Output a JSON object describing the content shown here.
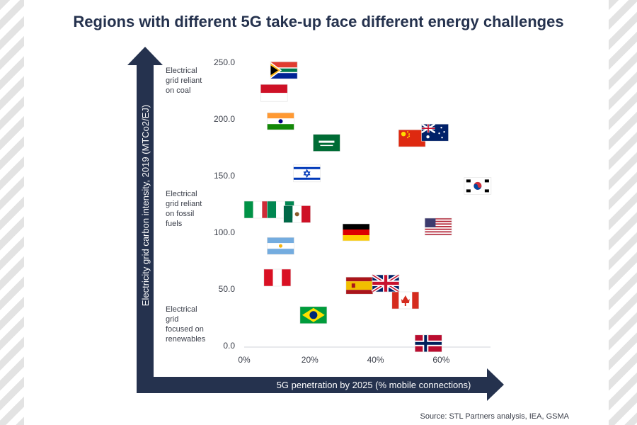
{
  "title": "Regions with different 5G take-up face different energy challenges",
  "source": "Source: STL Partners analysis, IEA, GSMA",
  "colors": {
    "axis": "#25324e",
    "text": "#3b3f4a",
    "grid": "#d0d3d8"
  },
  "chart_data": {
    "type": "scatter",
    "xlabel": "5G penetration by 2025 (% mobile connections)",
    "ylabel": "Electricity grid carbon intensity, 2019 (MTCo2/EJ)",
    "xlim": [
      0,
      75
    ],
    "ylim": [
      0,
      250
    ],
    "x_ticks": [
      "0%",
      "20%",
      "40%",
      "60%"
    ],
    "x_tick_values": [
      0,
      20,
      40,
      60
    ],
    "y_ticks": [
      "0.0",
      "50.0",
      "100.0",
      "150.0",
      "200.0",
      "250.0"
    ],
    "y_tick_values": [
      0,
      50,
      100,
      150,
      200,
      250
    ],
    "categories": [
      {
        "lines": [
          "Electrical",
          "grid reliant",
          "on coal"
        ]
      },
      {
        "lines": [
          "Electrical",
          "grid reliant",
          "on fossil",
          "fuels"
        ]
      },
      {
        "lines": [
          "Electrical",
          "grid",
          "focused on",
          "renewables"
        ]
      }
    ],
    "points": [
      {
        "country": "South Africa",
        "flag": "south-africa",
        "x": 8,
        "y": 243
      },
      {
        "country": "Indonesia",
        "flag": "indonesia",
        "x": 5,
        "y": 223
      },
      {
        "country": "India",
        "flag": "india",
        "x": 7,
        "y": 198
      },
      {
        "country": "Saudi Arabia",
        "flag": "saudi-arabia",
        "x": 21,
        "y": 179
      },
      {
        "country": "China",
        "flag": "china",
        "x": 47,
        "y": 183
      },
      {
        "country": "Australia",
        "flag": "australia",
        "x": 54,
        "y": 188
      },
      {
        "country": "Israel",
        "flag": "israel",
        "x": 15,
        "y": 152
      },
      {
        "country": "South Korea",
        "flag": "south-korea",
        "x": 67,
        "y": 141
      },
      {
        "country": "Italy",
        "flag": "italy",
        "x": 0,
        "y": 120
      },
      {
        "country": "Nigeria",
        "flag": "nigeria",
        "x": 7,
        "y": 120
      },
      {
        "country": "Mexico",
        "flag": "mexico",
        "x": 12,
        "y": 116
      },
      {
        "country": "Germany",
        "flag": "germany",
        "x": 30,
        "y": 100
      },
      {
        "country": "United States",
        "flag": "usa",
        "x": 55,
        "y": 105
      },
      {
        "country": "Argentina",
        "flag": "argentina",
        "x": 7,
        "y": 88
      },
      {
        "country": "Peru",
        "flag": "peru",
        "x": 6,
        "y": 60
      },
      {
        "country": "Spain",
        "flag": "spain",
        "x": 31,
        "y": 53
      },
      {
        "country": "United Kingdom",
        "flag": "uk",
        "x": 39,
        "y": 55
      },
      {
        "country": "Canada",
        "flag": "canada",
        "x": 45,
        "y": 40
      },
      {
        "country": "Brazil",
        "flag": "brazil",
        "x": 17,
        "y": 27
      },
      {
        "country": "Norway",
        "flag": "norway",
        "x": 52,
        "y": 2
      }
    ]
  }
}
